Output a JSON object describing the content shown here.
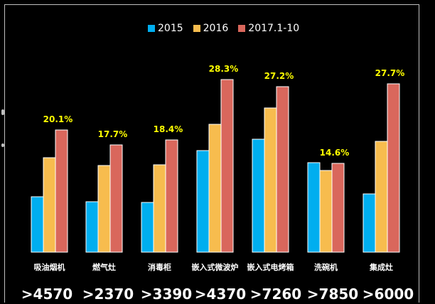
{
  "chart_data": {
    "type": "bar",
    "title": "",
    "categories": [
      "吸油烟机",
      "燃气灶",
      "消毒柜",
      "嵌入式微波炉",
      "嵌入式电烤箱",
      "洗碗机",
      "集成灶"
    ],
    "series": [
      {
        "name": "2015",
        "color": "#00aeef",
        "values": [
          78,
          71,
          70,
          143,
          159,
          126,
          82
        ]
      },
      {
        "name": "2016",
        "color": "#f7bc4e",
        "values": [
          133,
          122,
          123,
          180,
          203,
          115,
          156
        ]
      },
      {
        "name": "2017.1-10",
        "color": "#d9675c",
        "values": [
          172,
          151,
          158,
          243,
          233,
          125,
          237
        ]
      }
    ],
    "data_labels": [
      "20.1%",
      "17.7%",
      "18.4%",
      "28.3%",
      "27.2%",
      "14.6%",
      "27.7%"
    ],
    "data_label_color": "#ffff00",
    "ylim": [
      0,
      250
    ],
    "xlabel": "",
    "ylabel": "",
    "grid": false,
    "legend_position": "top"
  },
  "price_labels": [
    ">4570",
    ">2370",
    ">3390",
    ">4370",
    ">7260",
    ">7850",
    ">6000"
  ]
}
